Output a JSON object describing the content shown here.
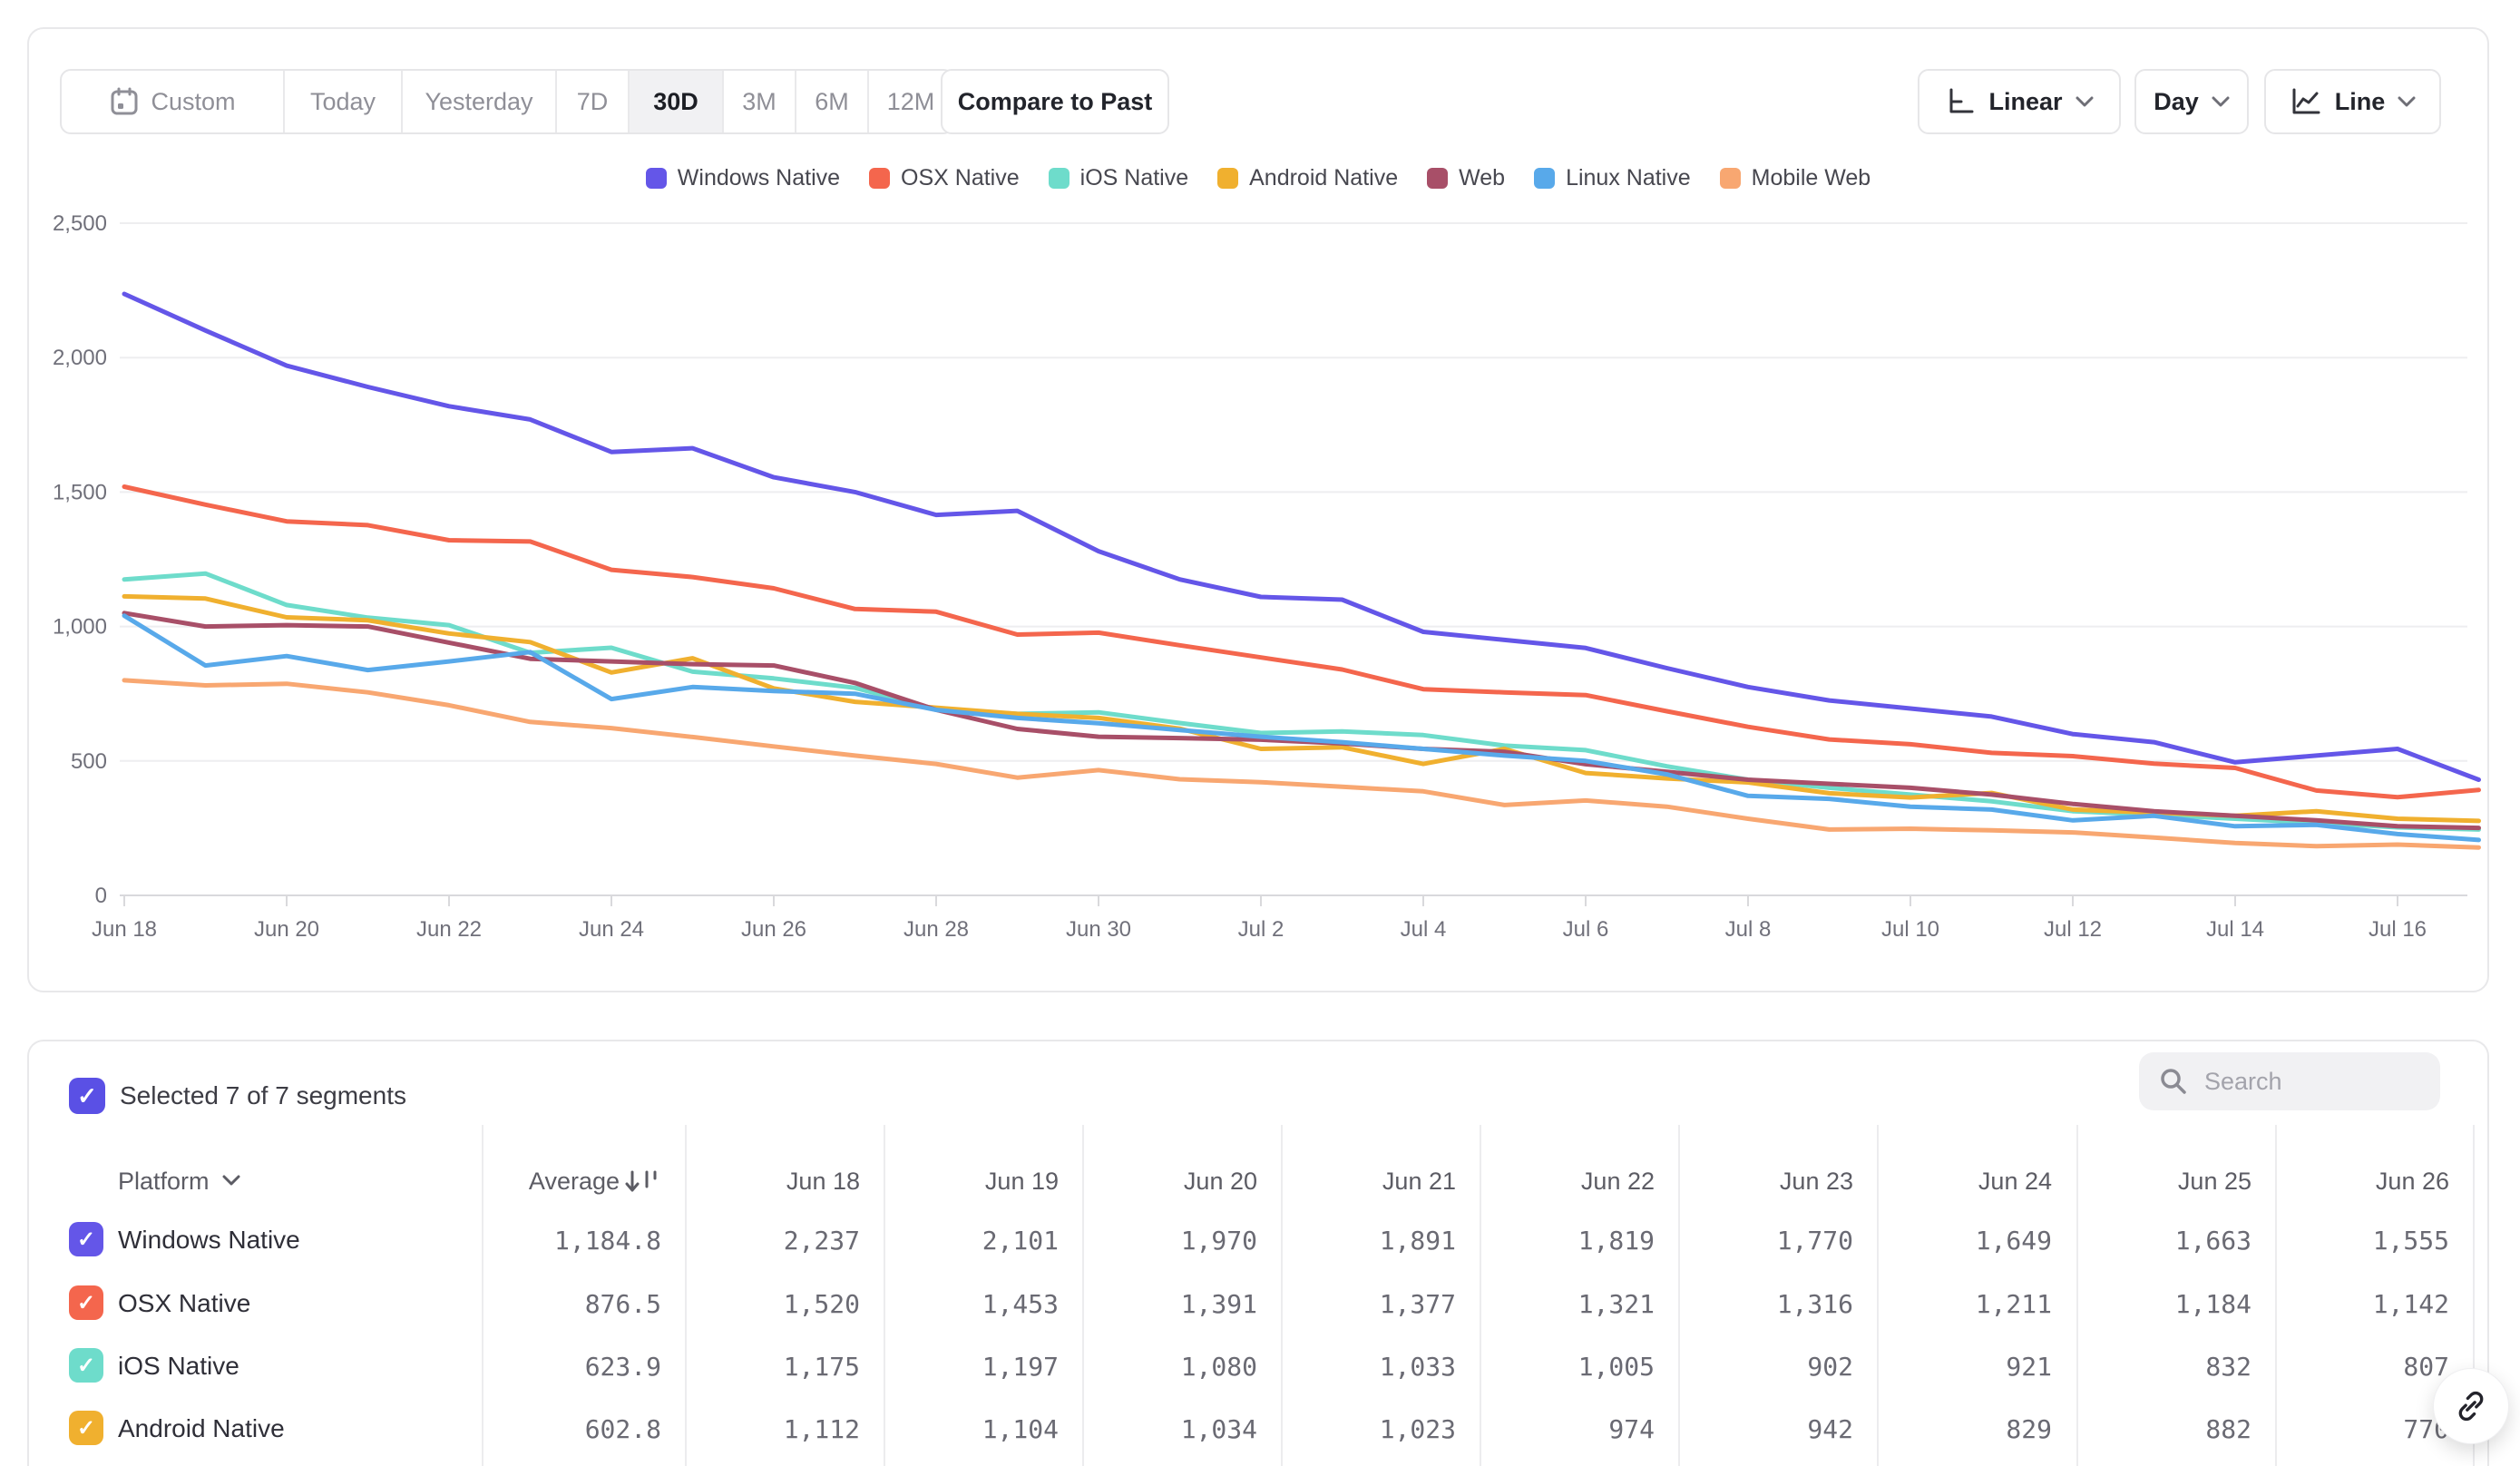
{
  "toolbar": {
    "date_ranges": [
      "Custom",
      "Today",
      "Yesterday",
      "7D",
      "30D",
      "3M",
      "6M",
      "12M"
    ],
    "selected_range": "30D",
    "compare_label": "Compare to Past",
    "scale_label": "Linear",
    "interval_label": "Day",
    "chart_type_label": "Line"
  },
  "chart_data": {
    "type": "line",
    "title": "",
    "xlabel": "",
    "ylabel": "",
    "ylim": [
      0,
      2500
    ],
    "grid": true,
    "legend_position": "top-center",
    "y_ticks": [
      0,
      500,
      1000,
      1500,
      2000,
      2500
    ],
    "y_tick_labels": [
      "0",
      "500",
      "1,000",
      "1,500",
      "2,000",
      "2,500"
    ],
    "x": [
      "Jun 18",
      "Jun 19",
      "Jun 20",
      "Jun 21",
      "Jun 22",
      "Jun 23",
      "Jun 24",
      "Jun 25",
      "Jun 26",
      "Jun 27",
      "Jun 28",
      "Jun 29",
      "Jun 30",
      "Jul 1",
      "Jul 2",
      "Jul 3",
      "Jul 4",
      "Jul 5",
      "Jul 6",
      "Jul 7",
      "Jul 8",
      "Jul 9",
      "Jul 10",
      "Jul 11",
      "Jul 12",
      "Jul 13",
      "Jul 14",
      "Jul 15",
      "Jul 16",
      "Jul 17"
    ],
    "x_tick_labels": [
      "Jun 18",
      "Jun 20",
      "Jun 22",
      "Jun 24",
      "Jun 26",
      "Jun 28",
      "Jun 30",
      "Jul 2",
      "Jul 4",
      "Jul 6",
      "Jul 8",
      "Jul 10",
      "Jul 12",
      "Jul 14",
      "Jul 16"
    ],
    "series": [
      {
        "name": "Windows Native",
        "color": "#6456e8",
        "values": [
          2237,
          2101,
          1970,
          1891,
          1819,
          1770,
          1649,
          1663,
          1555,
          1500,
          1415,
          1430,
          1280,
          1175,
          1110,
          1100,
          980,
          950,
          920,
          845,
          775,
          725,
          695,
          665,
          600,
          570,
          495,
          520,
          545,
          430
        ]
      },
      {
        "name": "OSX Native",
        "color": "#f4664d",
        "values": [
          1520,
          1453,
          1391,
          1377,
          1321,
          1316,
          1211,
          1184,
          1142,
          1065,
          1055,
          970,
          977,
          930,
          885,
          840,
          767,
          755,
          745,
          685,
          627,
          580,
          562,
          530,
          518,
          490,
          474,
          390,
          365,
          392
        ]
      },
      {
        "name": "iOS Native",
        "color": "#6edccb",
        "values": [
          1175,
          1197,
          1080,
          1033,
          1005,
          902,
          921,
          832,
          807,
          772,
          692,
          675,
          681,
          641,
          604,
          610,
          596,
          557,
          540,
          480,
          430,
          400,
          375,
          350,
          313,
          300,
          285,
          270,
          253,
          245
        ]
      },
      {
        "name": "Android Native",
        "color": "#f0b02f",
        "values": [
          1112,
          1104,
          1034,
          1023,
          974,
          942,
          829,
          882,
          770,
          720,
          698,
          675,
          660,
          620,
          545,
          551,
          489,
          545,
          455,
          435,
          420,
          380,
          364,
          381,
          319,
          308,
          296,
          313,
          285,
          277
        ]
      },
      {
        "name": "Web",
        "color": "#a84f68",
        "values": [
          1050,
          1000,
          1005,
          1000,
          940,
          880,
          870,
          860,
          855,
          790,
          690,
          619,
          590,
          585,
          579,
          565,
          545,
          534,
          488,
          460,
          430,
          415,
          400,
          375,
          340,
          313,
          296,
          279,
          257,
          251
        ]
      },
      {
        "name": "Linux Native",
        "color": "#58a9ea",
        "values": [
          1040,
          855,
          890,
          838,
          870,
          905,
          730,
          775,
          760,
          750,
          690,
          660,
          640,
          615,
          590,
          570,
          545,
          520,
          500,
          450,
          370,
          359,
          330,
          319,
          279,
          296,
          257,
          262,
          228,
          206
        ]
      },
      {
        "name": "Mobile Web",
        "color": "#f8a771",
        "values": [
          800,
          781,
          787,
          755,
          707,
          645,
          622,
          589,
          554,
          520,
          489,
          438,
          466,
          432,
          421,
          404,
          387,
          336,
          353,
          330,
          285,
          245,
          248,
          242,
          234,
          215,
          195,
          183,
          189,
          178
        ]
      }
    ]
  },
  "table": {
    "selected_summary": "Selected 7 of 7 segments",
    "selected_checkbox_color": "#5a50e5",
    "search_placeholder": "Search",
    "platform_header": "Platform",
    "average_header": "Average",
    "date_columns": [
      "Jun 18",
      "Jun 19",
      "Jun 20",
      "Jun 21",
      "Jun 22",
      "Jun 23",
      "Jun 24",
      "Jun 25",
      "Jun 26"
    ],
    "rows": [
      {
        "platform": "Windows Native",
        "color": "#6456e8",
        "checked": true,
        "average": "1,184.8",
        "values": [
          "2,237",
          "2,101",
          "1,970",
          "1,891",
          "1,819",
          "1,770",
          "1,649",
          "1,663",
          "1,555"
        ]
      },
      {
        "platform": "OSX Native",
        "color": "#f4664d",
        "checked": true,
        "average": "876.5",
        "values": [
          "1,520",
          "1,453",
          "1,391",
          "1,377",
          "1,321",
          "1,316",
          "1,211",
          "1,184",
          "1,142"
        ]
      },
      {
        "platform": "iOS Native",
        "color": "#6edccb",
        "checked": true,
        "average": "623.9",
        "values": [
          "1,175",
          "1,197",
          "1,080",
          "1,033",
          "1,005",
          "902",
          "921",
          "832",
          "807"
        ]
      },
      {
        "platform": "Android Native",
        "color": "#f0b02f",
        "checked": true,
        "average": "602.8",
        "values": [
          "1,112",
          "1,104",
          "1,034",
          "1,023",
          "974",
          "942",
          "829",
          "882",
          "770"
        ]
      }
    ]
  },
  "glyphs": {
    "check": "✓"
  }
}
